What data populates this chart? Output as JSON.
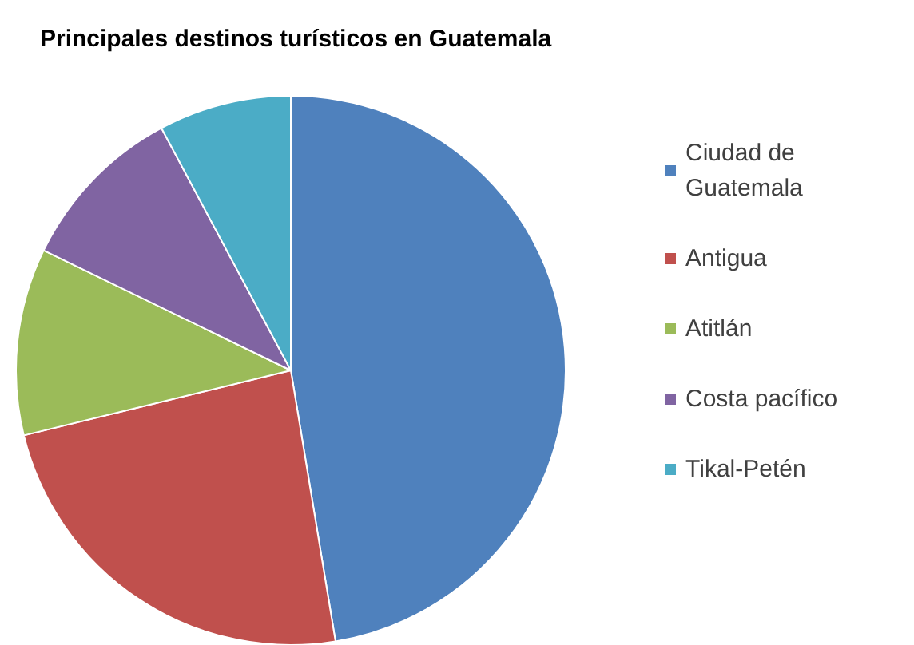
{
  "chart_data": {
    "type": "pie",
    "title": "Principales destinos turísticos en Guatemala",
    "categories": [
      "Ciudad de Guatemala",
      "Antigua",
      "Atitlán",
      "Costa pacífico",
      "Tikal-Petén"
    ],
    "values": [
      47.4,
      23.8,
      11,
      10,
      7.8
    ],
    "colors": [
      "#4f81bd",
      "#c0504d",
      "#9bbb59",
      "#8064a2",
      "#4bacc6"
    ],
    "legend": "right"
  }
}
